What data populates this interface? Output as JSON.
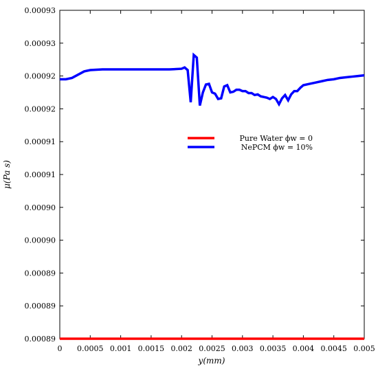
{
  "chart_data": {
    "type": "line",
    "xlabel": "y(mm)",
    "ylabel": "μ(Pa s)",
    "xlim": [
      0,
      0.005
    ],
    "ylim": [
      0.000885,
      0.000935
    ],
    "x_ticks": [
      0,
      0.0005,
      0.001,
      0.0015,
      0.002,
      0.0025,
      0.003,
      0.0035,
      0.004,
      0.0045,
      0.005
    ],
    "x_tick_labels": [
      "0",
      "0.0005",
      "0.001",
      "0.0015",
      "0.002",
      "0.0025",
      "0.003",
      "0.0035",
      "0.004",
      "0.0045",
      "0.005"
    ],
    "y_ticks": [
      0.000885,
      0.00089,
      0.000895,
      0.0009,
      0.000905,
      0.00091,
      0.000915,
      0.00092,
      0.000925,
      0.00093,
      0.000935
    ],
    "y_tick_labels": [
      "0.00089",
      "0.00089",
      "0.00089",
      "0.00090",
      "0.00090",
      "0.00091",
      "0.00091",
      "0.00092",
      "0.00092",
      "0.00093",
      "0.00093"
    ],
    "legend_position": "center",
    "grid": false,
    "series": [
      {
        "name": "Pure Water ϕw = 0",
        "color": "#ff0000",
        "x": [
          0,
          0.005
        ],
        "y": [
          0.000885,
          0.000885
        ]
      },
      {
        "name": "NePCM ϕw = 10%",
        "color": "#0000ff",
        "x": [
          0,
          0.0001,
          0.0002,
          0.0003,
          0.0004,
          0.0005,
          0.0007,
          0.001,
          0.0015,
          0.0018,
          0.002,
          0.00205,
          0.0021,
          0.00215,
          0.0022,
          0.00225,
          0.0023,
          0.00235,
          0.0024,
          0.00245,
          0.0025,
          0.00255,
          0.0026,
          0.00265,
          0.0027,
          0.00275,
          0.0028,
          0.00285,
          0.0029,
          0.00295,
          0.003,
          0.00305,
          0.0031,
          0.00315,
          0.0032,
          0.00325,
          0.0033,
          0.00335,
          0.0034,
          0.00345,
          0.0035,
          0.00355,
          0.0036,
          0.00365,
          0.0037,
          0.00375,
          0.0038,
          0.00385,
          0.0039,
          0.00395,
          0.004,
          0.0041,
          0.0042,
          0.0043,
          0.0044,
          0.0045,
          0.0046,
          0.0047,
          0.0048,
          0.0049,
          0.005
        ],
        "y": [
          0.0009245,
          0.0009245,
          0.0009247,
          0.0009252,
          0.0009257,
          0.0009259,
          0.000926,
          0.000926,
          0.000926,
          0.000926,
          0.0009261,
          0.0009263,
          0.0009259,
          0.000921,
          0.0009282,
          0.0009278,
          0.0009205,
          0.0009225,
          0.0009237,
          0.0009238,
          0.0009225,
          0.0009223,
          0.0009215,
          0.0009216,
          0.0009234,
          0.0009236,
          0.0009225,
          0.0009226,
          0.0009229,
          0.0009229,
          0.0009227,
          0.0009227,
          0.0009224,
          0.0009224,
          0.0009221,
          0.0009222,
          0.0009219,
          0.0009218,
          0.0009217,
          0.0009215,
          0.0009218,
          0.0009215,
          0.0009207,
          0.0009216,
          0.0009221,
          0.0009213,
          0.0009222,
          0.0009227,
          0.0009227,
          0.0009232,
          0.0009236,
          0.0009238,
          0.000924,
          0.0009242,
          0.0009244,
          0.0009245,
          0.0009247,
          0.0009248,
          0.0009249,
          0.000925,
          0.0009251
        ]
      }
    ]
  }
}
